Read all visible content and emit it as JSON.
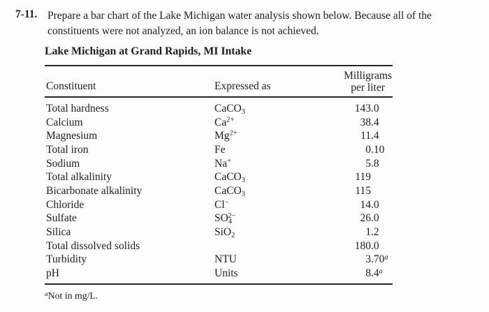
{
  "problem": {
    "number": "7-11.",
    "text": "Prepare a bar chart of the Lake Michigan water analysis shown below. Because all of the constituents were not analyzed, an ion balance is not achieved."
  },
  "table": {
    "title": "Lake Michigan at Grand Rapids, MI Intake",
    "columns": {
      "constituent": "Constituent",
      "expressed_as": "Expressed as",
      "milligrams_line1": "Milligrams",
      "milligrams_line2": "per liter"
    },
    "rows": [
      {
        "constituent": "Total hardness",
        "formula": "CaCO_3",
        "value_int": "143",
        "value_frac": ".0",
        "value_sup": ""
      },
      {
        "constituent": "Calcium",
        "formula": "Ca^2+",
        "value_int": "38",
        "value_frac": ".4",
        "value_sup": ""
      },
      {
        "constituent": "Magnesium",
        "formula": "Mg^2+",
        "value_int": "11",
        "value_frac": ".4",
        "value_sup": ""
      },
      {
        "constituent": "Total iron",
        "formula": "Fe",
        "value_int": "0",
        "value_frac": ".10",
        "value_sup": ""
      },
      {
        "constituent": "Sodium",
        "formula": "Na^+",
        "value_int": "5",
        "value_frac": ".8",
        "value_sup": ""
      },
      {
        "constituent": "Total alkalinity",
        "formula": "CaCO_3",
        "value_int": "119",
        "value_frac": "",
        "value_sup": ""
      },
      {
        "constituent": "Bicarbonate alkalinity",
        "formula": "CaCO_3",
        "value_int": "115",
        "value_frac": "",
        "value_sup": ""
      },
      {
        "constituent": "Chloride",
        "formula": "Cl^−",
        "value_int": "14",
        "value_frac": ".0",
        "value_sup": ""
      },
      {
        "constituent": "Sulfate",
        "formula": "SO_4^2−",
        "value_int": "26",
        "value_frac": ".0",
        "value_sup": ""
      },
      {
        "constituent": "Silica",
        "formula": "SiO_2",
        "value_int": "1",
        "value_frac": ".2",
        "value_sup": ""
      },
      {
        "constituent": "Total dissolved solids",
        "formula": "",
        "value_int": "180",
        "value_frac": ".0",
        "value_sup": ""
      },
      {
        "constituent": "Turbidity",
        "formula": "NTU",
        "value_int": "3",
        "value_frac": ".70",
        "value_sup": "a"
      },
      {
        "constituent": "pH",
        "formula": "Units",
        "value_int": "8",
        "value_frac": ".4",
        "value_sup": "a"
      }
    ],
    "footnote": {
      "sup": "a",
      "text": "Not in mg/L."
    }
  }
}
